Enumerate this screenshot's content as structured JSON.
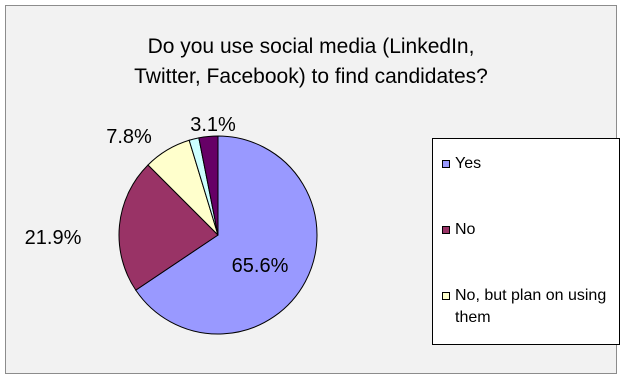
{
  "chart_data": {
    "type": "pie",
    "title_lines": [
      "Do you use social media (LinkedIn,",
      "Twitter, Facebook) to find candidates?"
    ],
    "slices": [
      {
        "label": "Yes",
        "value": 65.6,
        "display_label": "65.6%",
        "color": "#9999ff"
      },
      {
        "label": "No",
        "value": 21.9,
        "display_label": "21.9%",
        "color": "#993366"
      },
      {
        "label": "No, but plan on using them",
        "value": 7.8,
        "display_label": "7.8%",
        "color": "#ffffcc"
      },
      {
        "label": "",
        "value": 1.6,
        "display_label": "",
        "color": "#ccffff"
      },
      {
        "label": "",
        "value": 3.1,
        "display_label": "3.1%",
        "color": "#660066"
      }
    ],
    "legend": {
      "placement": "right",
      "items": [
        {
          "label": "Yes",
          "color": "#9999ff"
        },
        {
          "label": "No",
          "color": "#993366"
        },
        {
          "label": "No, but plan on using them",
          "color": "#ffffcc"
        }
      ]
    }
  }
}
